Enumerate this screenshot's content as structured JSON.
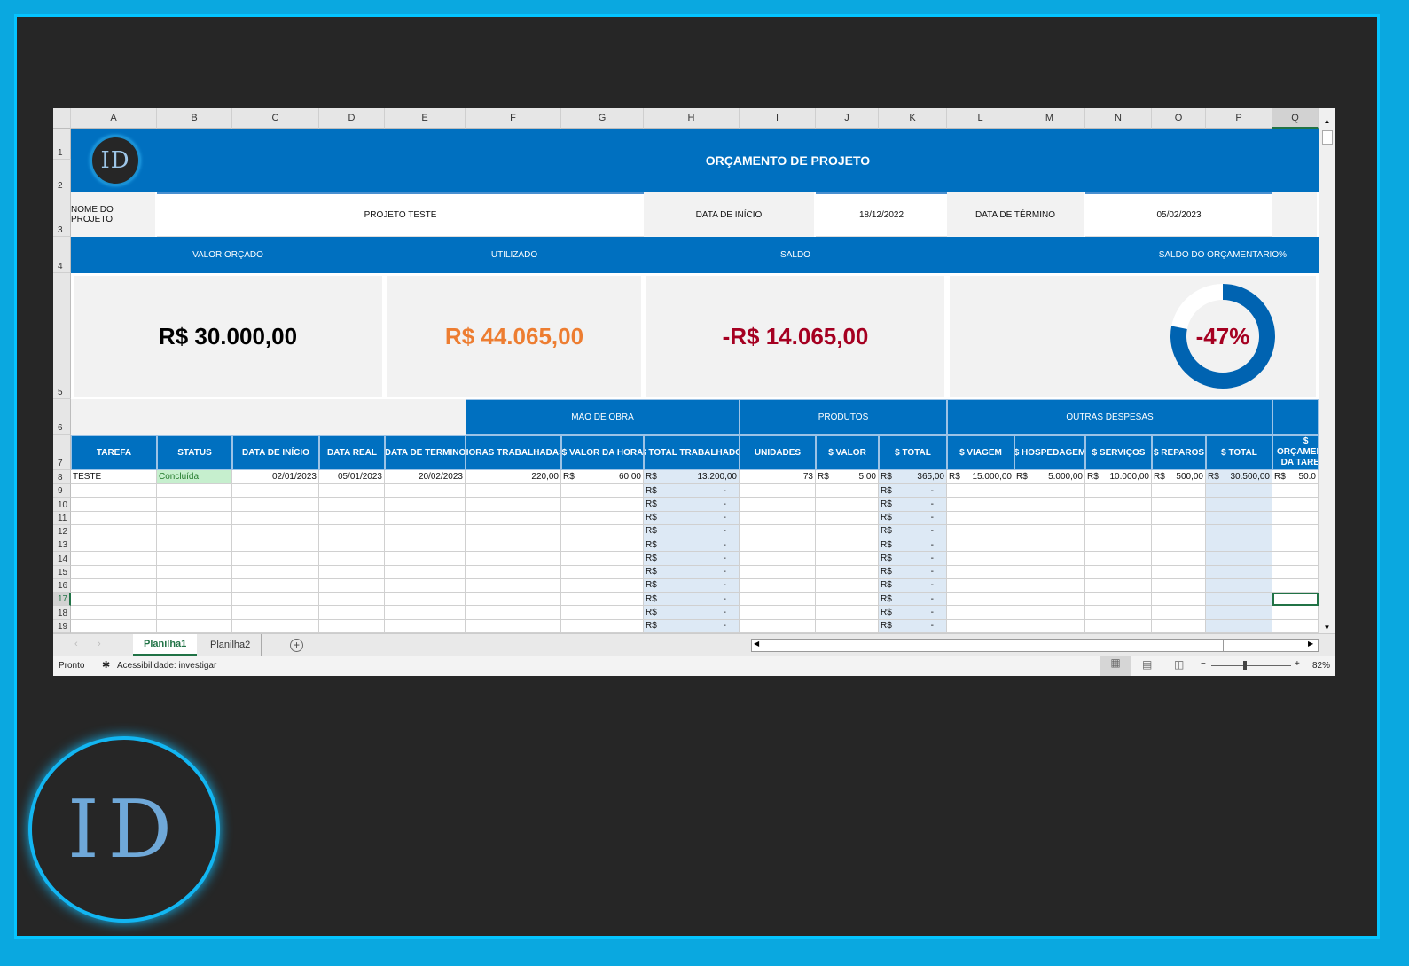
{
  "columns": [
    "A",
    "B",
    "C",
    "D",
    "E",
    "F",
    "G",
    "H",
    "I",
    "J",
    "K",
    "L",
    "M",
    "N",
    "O",
    "P",
    "Q"
  ],
  "rows": [
    "1",
    "2",
    "3",
    "4",
    "5",
    "6",
    "7",
    "8",
    "9",
    "10",
    "11",
    "12",
    "13",
    "14",
    "15",
    "16",
    "17",
    "18",
    "19"
  ],
  "header": {
    "logo": "ID",
    "title": "ORÇAMENTO DE PROJETO"
  },
  "project": {
    "name_label": "NOME DO PROJETO",
    "name": "PROJETO TESTE",
    "start_label": "DATA DE INÍCIO",
    "start": "18/12/2022",
    "end_label": "DATA DE TÉRMINO",
    "end": "05/02/2023"
  },
  "summary": {
    "budget_label": "VALOR ORÇADO",
    "used_label": "UTILIZADO",
    "balance_label": "SALDO",
    "pct_label": "SALDO DO ORÇAMENTARIO%",
    "budget": "R$ 30.000,00",
    "used": "R$ 44.065,00",
    "balance": "-R$ 14.065,00",
    "pct": "-47%",
    "colors": {
      "budget": "#000000",
      "used": "#ed7d31",
      "balance": "#a50021",
      "pct": "#a50021",
      "donut": "#0063b1"
    }
  },
  "groups": {
    "labor": "MÃO DE OBRA",
    "products": "PRODUTOS",
    "other": "OUTRAS DESPESAS"
  },
  "table_headers": [
    "TAREFA",
    "STATUS",
    "DATA DE INÍCIO",
    "DATA REAL",
    "DATA DE TERMINO",
    "HORAS TRABALHADAS",
    "$ VALOR DA HORA",
    "$ TOTAL TRABALHADO",
    "UNIDADES",
    "$ VALOR",
    "$ TOTAL",
    "$ VIAGEM",
    "$ HOSPEDAGEM",
    "$ SERVIÇOS",
    "$ REPAROS",
    "$ TOTAL",
    "$ ORÇAMENTO DA TAREFA"
  ],
  "row8": [
    "TESTE",
    "Concluída",
    "02/01/2023",
    "05/01/2023",
    "20/02/2023",
    "220,00",
    "R$|60,00",
    "R$|13.200,00",
    "73",
    "R$|5,00",
    "R$|365,00",
    "R$|15.000,00",
    "R$|5.000,00",
    "R$|10.000,00",
    "R$|500,00",
    "R$|30.500,00",
    "R$|50.0"
  ],
  "empty_total": "R$|-",
  "sheets": [
    "Planilha1",
    "Planilha2"
  ],
  "active_sheet": "Planilha1",
  "status": {
    "ready": "Pronto",
    "accessibility": "Acessibilidade: investigar",
    "zoom": "82%"
  }
}
